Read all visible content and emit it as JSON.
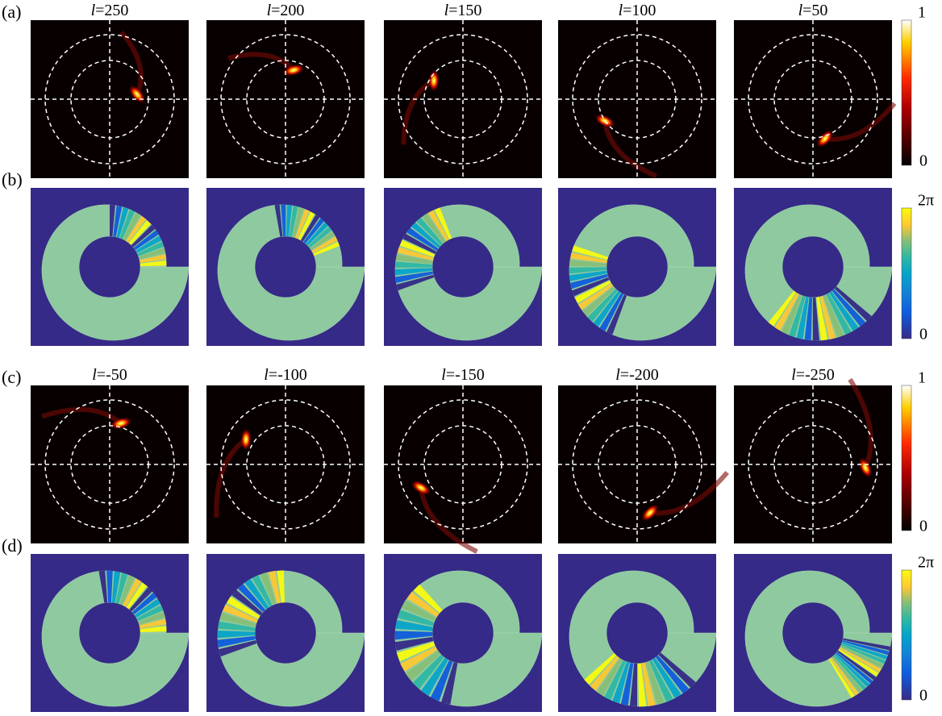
{
  "rows": [
    {
      "label": "(a)",
      "kind": "intensity",
      "titles": [
        {
          "var": "l",
          "eq": "=250"
        },
        {
          "var": "l",
          "eq": "=200"
        },
        {
          "var": "l",
          "eq": "=150"
        },
        {
          "var": "l",
          "eq": "=100"
        },
        {
          "var": "l",
          "eq": "=50"
        }
      ],
      "colorbar": {
        "max": 1,
        "min": 0
      }
    },
    {
      "label": "(b)",
      "kind": "phase",
      "colorbar": {
        "max": "2π",
        "min": 0
      }
    },
    {
      "label": "(c)",
      "kind": "intensity",
      "titles": [
        {
          "var": "l",
          "eq": "=-50"
        },
        {
          "var": "l",
          "eq": "=-100"
        },
        {
          "var": "l",
          "eq": "=-150"
        },
        {
          "var": "l",
          "eq": "=-200"
        },
        {
          "var": "l",
          "eq": "=-250"
        }
      ],
      "colorbar": {
        "max": 1,
        "min": 0
      }
    },
    {
      "label": "(d)",
      "kind": "phase",
      "colorbar": {
        "max": "2π",
        "min": 0
      }
    }
  ]
}
